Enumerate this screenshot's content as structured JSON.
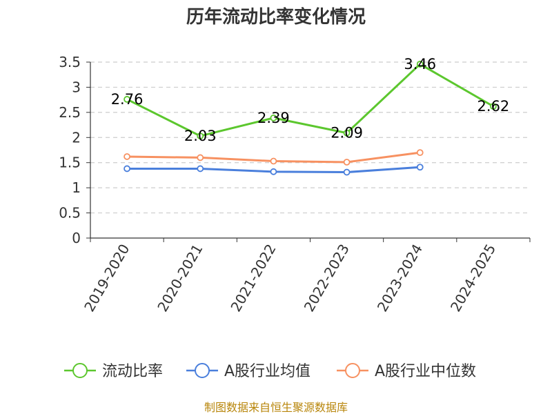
{
  "chart_data": {
    "type": "line",
    "title": "历年流动比率变化情况",
    "categories": [
      "2019-2020",
      "2020-2021",
      "2021-2022",
      "2022-2023",
      "2023-2024",
      "2024-2025"
    ],
    "ylim": [
      0,
      3.5
    ],
    "yticks": [
      "0",
      "0.5",
      "1",
      "1.5",
      "2",
      "2.5",
      "3",
      "3.5"
    ],
    "grid": true,
    "legend_position": "bottom",
    "series": [
      {
        "name": "流动比率",
        "color": "#5cc72e",
        "values": [
          2.76,
          2.03,
          2.39,
          2.09,
          3.46,
          2.62
        ],
        "labels": [
          "2.76",
          "2.03",
          "2.39",
          "2.09",
          "3.46",
          "2.62"
        ]
      },
      {
        "name": "A股行业均值",
        "color": "#4a7fdc",
        "values": [
          1.38,
          1.38,
          1.32,
          1.31,
          1.41,
          null
        ]
      },
      {
        "name": "A股行业中位数",
        "color": "#f79161",
        "values": [
          1.62,
          1.6,
          1.53,
          1.51,
          1.7,
          null
        ]
      }
    ],
    "source": "制图数据来自恒生聚源数据库"
  }
}
